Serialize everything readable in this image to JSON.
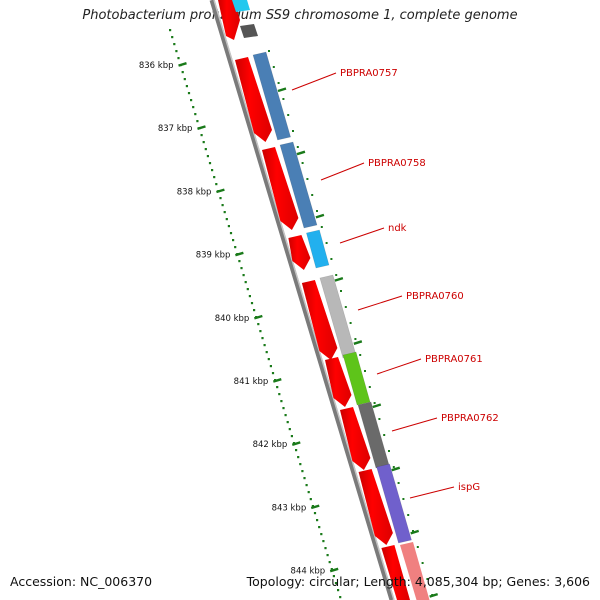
{
  "title": "Photobacterium profundum SS9 chromosome 1, complete genome",
  "footer": {
    "accession": "Accession: NC_006370",
    "summary": "Topology: circular; Length: 4,085,304 bp; Genes: 3,606"
  },
  "colors": {
    "backbone": "#7a7a7a",
    "strand_arrow": "#ff0000",
    "label_red": "#cc0000",
    "tick_green": "#1a7a1a"
  },
  "kbp_ticks": [
    "836 kbp",
    "837 kbp",
    "838 kbp",
    "839 kbp",
    "840 kbp",
    "841 kbp",
    "842 kbp",
    "843 kbp",
    "844 kbp"
  ],
  "genes": [
    {
      "label": "PBPRA0757",
      "color": "#4a7fb5"
    },
    {
      "label": "PBPRA0758",
      "color": "#4a7fb5"
    },
    {
      "label": "ndk",
      "color": "#22b0ee"
    },
    {
      "label": "PBPRA0760",
      "color": "#b8b8b8"
    },
    {
      "label": "PBPRA0761",
      "color": "#5ec41a"
    },
    {
      "label": "PBPRA0762",
      "color": "#6a6a6a"
    },
    {
      "label": "ispG",
      "color": "#7060cc"
    }
  ]
}
